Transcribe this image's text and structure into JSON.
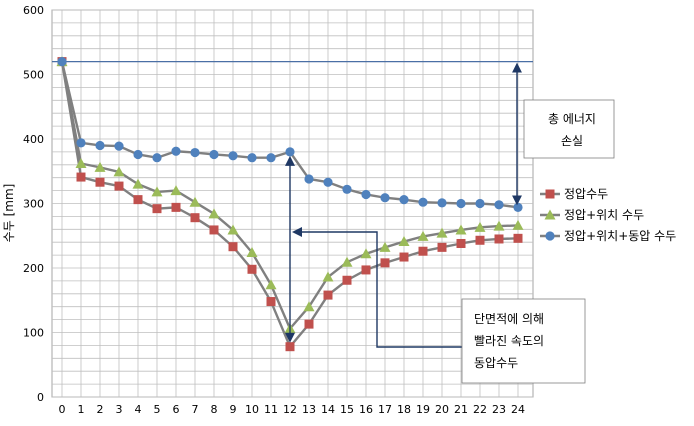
{
  "chart_data": {
    "type": "line",
    "ylabel": "수두 [mm]",
    "ylim": [
      0,
      600
    ],
    "yticks": [
      0,
      100,
      200,
      300,
      400,
      500,
      600
    ],
    "x": [
      0,
      1,
      2,
      3,
      4,
      5,
      6,
      7,
      8,
      9,
      10,
      11,
      12,
      13,
      14,
      15,
      16,
      17,
      18,
      19,
      20,
      21,
      22,
      23,
      24
    ],
    "grid": true,
    "legend_position": "right",
    "reference_line": 520,
    "series": [
      {
        "name": "정압수두",
        "marker": "square",
        "color": "#c0504d",
        "values": [
          520,
          341,
          333,
          327,
          306,
          292,
          294,
          278,
          259,
          233,
          198,
          148,
          78,
          113,
          158,
          181,
          197,
          208,
          217,
          226,
          232,
          238,
          243,
          245,
          246
        ]
      },
      {
        "name": "정압+위치 수두",
        "marker": "triangle",
        "color": "#9bbb59",
        "values": [
          520,
          362,
          356,
          349,
          330,
          318,
          320,
          302,
          284,
          259,
          224,
          174,
          106,
          140,
          186,
          209,
          222,
          232,
          241,
          249,
          254,
          259,
          263,
          265,
          266
        ]
      },
      {
        "name": "정압+위치+동압 수두",
        "marker": "circle",
        "color": "#4f81bd",
        "values": [
          520,
          394,
          390,
          389,
          376,
          371,
          381,
          379,
          376,
          374,
          371,
          371,
          380,
          338,
          333,
          322,
          314,
          309,
          306,
          302,
          301,
          300,
          300,
          298,
          294
        ]
      }
    ],
    "annotations": [
      {
        "name": "total-energy-loss",
        "lines": [
          "총 에너지",
          "손실"
        ]
      },
      {
        "name": "dynamic-head",
        "lines": [
          "단면적에 의해",
          "빨라진 속도의",
          "동압수두"
        ]
      }
    ]
  }
}
